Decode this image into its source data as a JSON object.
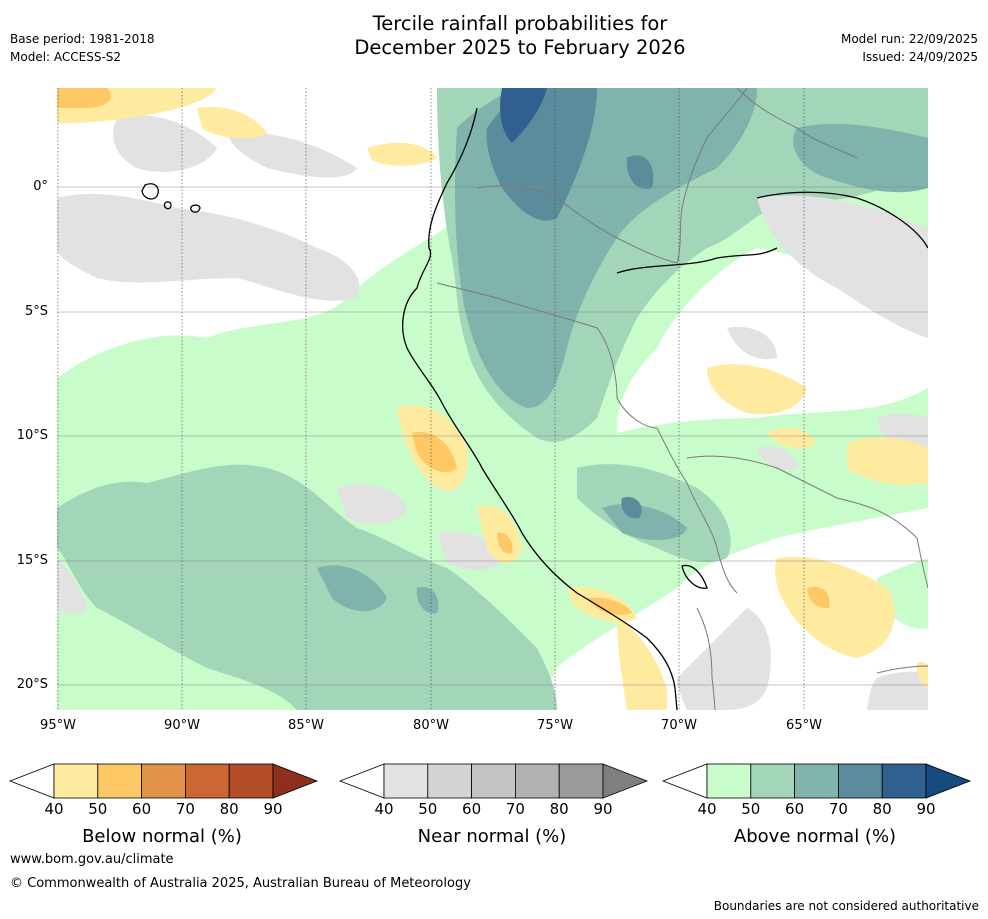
{
  "header": {
    "title_line1": "Tercile rainfall probabilities for",
    "title_line2": "December 2025 to February 2026",
    "base_period": "Base period: 1981-2018",
    "model": "Model: ACCESS-S2",
    "model_run": "Model run: 22/09/2025",
    "issued": "Issued: 24/09/2025"
  },
  "map": {
    "lat_labels": [
      "0°",
      "5°S",
      "10°S",
      "15°S",
      "20°S"
    ],
    "lon_labels": [
      "95°W",
      "90°W",
      "85°W",
      "80°W",
      "75°W",
      "70°W",
      "65°W"
    ],
    "extent": {
      "lon_min": -95,
      "lon_max": -60,
      "lat_min": -21,
      "lat_max": 4
    }
  },
  "legends": [
    {
      "name": "below",
      "title": "Below normal (%)",
      "ticks": [
        "40",
        "50",
        "60",
        "70",
        "80",
        "90"
      ],
      "colors": [
        "#ffffff",
        "#ffeba0",
        "#fec965",
        "#e0914a",
        "#cc6635",
        "#b34d28",
        "#8c2f1c"
      ]
    },
    {
      "name": "near",
      "title": "Near normal (%)",
      "ticks": [
        "40",
        "50",
        "60",
        "70",
        "80",
        "90"
      ],
      "colors": [
        "#ffffff",
        "#e2e2e2",
        "#d4d4d4",
        "#c4c4c4",
        "#b1b1b1",
        "#9c9c9c",
        "#7f7f7f"
      ]
    },
    {
      "name": "above",
      "title": "Above normal (%)",
      "ticks": [
        "40",
        "50",
        "60",
        "70",
        "80",
        "90"
      ],
      "colors": [
        "#ffffff",
        "#c8fdcb",
        "#a3d5b8",
        "#7fb3ab",
        "#5a8c9c",
        "#2f6090",
        "#174a7d"
      ]
    }
  ],
  "footer": {
    "website": "www.bom.gov.au/climate",
    "copyright": "© Commonwealth of Australia 2025, Australian Bureau of Meteorology",
    "disclaimer": "Boundaries are not considered authoritative"
  }
}
